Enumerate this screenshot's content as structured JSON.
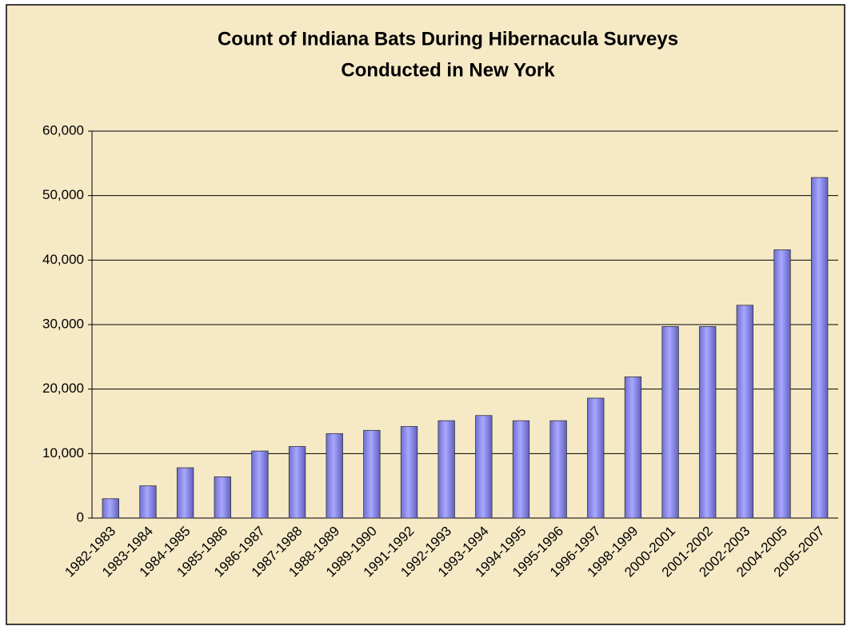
{
  "chart_data": {
    "type": "bar",
    "title": [
      "Count of Indiana Bats During Hibernacula Surveys",
      "Conducted in New York"
    ],
    "categories": [
      "1982-1983",
      "1983-1984",
      "1984-1985",
      "1985-1986",
      "1986-1987",
      "1987-1988",
      "1988-1989",
      "1989-1990",
      "1991-1992",
      "1992-1993",
      "1993-1994",
      "1994-1995",
      "1995-1996",
      "1996-1997",
      "1998-1999",
      "2000-2001",
      "2001-2002",
      "2002-2003",
      "2004-2005",
      "2005-2007"
    ],
    "values": [
      3000,
      5000,
      7800,
      6400,
      10400,
      11100,
      13100,
      13600,
      14200,
      15100,
      15900,
      15100,
      15100,
      18600,
      21900,
      29700,
      29700,
      33000,
      41600,
      52800
    ],
    "color": "#9999ff",
    "ylim": [
      0,
      60000
    ],
    "yticks": [
      0,
      {
        "value": 10000,
        "label": "10,000"
      },
      {
        "value": 20000,
        "label": "20,000"
      },
      {
        "value": 30000,
        "label": "30,000"
      },
      {
        "value": 40000,
        "label": "40,000"
      },
      {
        "value": 50000,
        "label": "50,000"
      },
      {
        "value": 60000,
        "label": "60,000"
      }
    ],
    "grid": true
  }
}
